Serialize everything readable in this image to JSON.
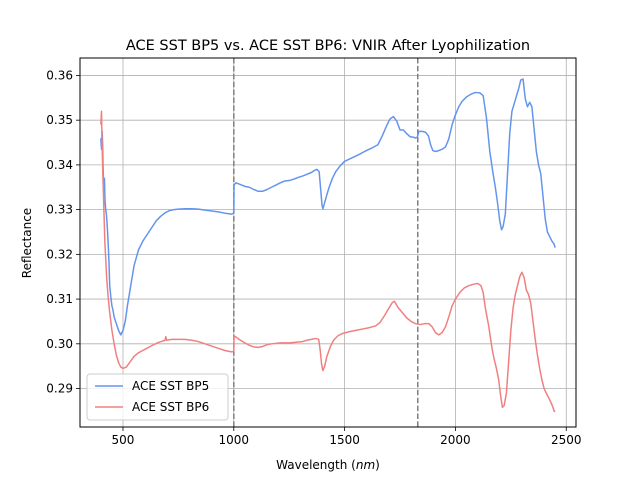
{
  "chart_data": {
    "type": "line",
    "title": "ACE SST BP5 vs. ACE SST BP6: VNIR After Lyophilization",
    "xlabel_prefix": "Wavelength (",
    "xlabel_unit": "nm",
    "xlabel_suffix": ")",
    "ylabel": "Reflectance",
    "xlim": [
      306,
      2544
    ],
    "ylim": [
      0.2814,
      0.3639
    ],
    "xticks": [
      500,
      1000,
      1500,
      2000,
      2500
    ],
    "xtick_labels": [
      "500",
      "1000",
      "1500",
      "2000",
      "2500"
    ],
    "yticks": [
      0.29,
      0.3,
      0.31,
      0.32,
      0.33,
      0.34,
      0.35,
      0.36
    ],
    "ytick_labels": [
      "0.29",
      "0.30",
      "0.31",
      "0.32",
      "0.33",
      "0.34",
      "0.35",
      "0.36"
    ],
    "grid": true,
    "legend_position": "lower-left",
    "vlines": [
      1000,
      1830
    ],
    "series": [
      {
        "name": "ACE SST BP5",
        "color": "#6495ed",
        "points": [
          [
            400,
            0.346
          ],
          [
            403,
            0.3435
          ],
          [
            406,
            0.3475
          ],
          [
            408,
            0.3448
          ],
          [
            410,
            0.3395
          ],
          [
            413,
            0.3355
          ],
          [
            416,
            0.337
          ],
          [
            419,
            0.332
          ],
          [
            422,
            0.33
          ],
          [
            425,
            0.329
          ],
          [
            428,
            0.327
          ],
          [
            431,
            0.3245
          ],
          [
            434,
            0.3215
          ],
          [
            437,
            0.318
          ],
          [
            440,
            0.313
          ],
          [
            445,
            0.3105
          ],
          [
            450,
            0.3085
          ],
          [
            455,
            0.3075
          ],
          [
            460,
            0.306
          ],
          [
            470,
            0.3045
          ],
          [
            480,
            0.303
          ],
          [
            490,
            0.302
          ],
          [
            500,
            0.303
          ],
          [
            510,
            0.305
          ],
          [
            520,
            0.3085
          ],
          [
            535,
            0.313
          ],
          [
            550,
            0.3175
          ],
          [
            570,
            0.321
          ],
          [
            590,
            0.323
          ],
          [
            610,
            0.3245
          ],
          [
            630,
            0.326
          ],
          [
            650,
            0.3275
          ],
          [
            670,
            0.3285
          ],
          [
            690,
            0.3293
          ],
          [
            710,
            0.3298
          ],
          [
            730,
            0.33
          ],
          [
            750,
            0.3301
          ],
          [
            780,
            0.3302
          ],
          [
            810,
            0.3302
          ],
          [
            840,
            0.3301
          ],
          [
            870,
            0.3299
          ],
          [
            900,
            0.3297
          ],
          [
            930,
            0.3295
          ],
          [
            960,
            0.3292
          ],
          [
            990,
            0.329
          ],
          [
            1000,
            0.3292
          ],
          [
            1001,
            0.3355
          ],
          [
            1010,
            0.336
          ],
          [
            1030,
            0.3356
          ],
          [
            1050,
            0.3352
          ],
          [
            1070,
            0.335
          ],
          [
            1090,
            0.3345
          ],
          [
            1110,
            0.3341
          ],
          [
            1130,
            0.3341
          ],
          [
            1150,
            0.3345
          ],
          [
            1170,
            0.335
          ],
          [
            1190,
            0.3355
          ],
          [
            1210,
            0.336
          ],
          [
            1230,
            0.3364
          ],
          [
            1250,
            0.3365
          ],
          [
            1270,
            0.3368
          ],
          [
            1290,
            0.3372
          ],
          [
            1310,
            0.3375
          ],
          [
            1330,
            0.3379
          ],
          [
            1350,
            0.3383
          ],
          [
            1365,
            0.3388
          ],
          [
            1375,
            0.339
          ],
          [
            1385,
            0.3385
          ],
          [
            1392,
            0.3345
          ],
          [
            1398,
            0.331
          ],
          [
            1402,
            0.3302
          ],
          [
            1408,
            0.3312
          ],
          [
            1418,
            0.333
          ],
          [
            1430,
            0.335
          ],
          [
            1445,
            0.337
          ],
          [
            1460,
            0.3385
          ],
          [
            1480,
            0.3398
          ],
          [
            1500,
            0.3408
          ],
          [
            1530,
            0.3415
          ],
          [
            1560,
            0.3422
          ],
          [
            1590,
            0.343
          ],
          [
            1620,
            0.3437
          ],
          [
            1650,
            0.3445
          ],
          [
            1670,
            0.3465
          ],
          [
            1690,
            0.3488
          ],
          [
            1705,
            0.3503
          ],
          [
            1720,
            0.3508
          ],
          [
            1735,
            0.3498
          ],
          [
            1750,
            0.3478
          ],
          [
            1765,
            0.3478
          ],
          [
            1780,
            0.347
          ],
          [
            1795,
            0.3463
          ],
          [
            1810,
            0.3462
          ],
          [
            1820,
            0.346
          ],
          [
            1828,
            0.3462
          ],
          [
            1835,
            0.3475
          ],
          [
            1850,
            0.3475
          ],
          [
            1865,
            0.3473
          ],
          [
            1878,
            0.3465
          ],
          [
            1888,
            0.3445
          ],
          [
            1898,
            0.3432
          ],
          [
            1910,
            0.343
          ],
          [
            1925,
            0.3432
          ],
          [
            1940,
            0.3435
          ],
          [
            1955,
            0.344
          ],
          [
            1970,
            0.3458
          ],
          [
            1985,
            0.349
          ],
          [
            2000,
            0.3512
          ],
          [
            2015,
            0.353
          ],
          [
            2030,
            0.3542
          ],
          [
            2050,
            0.3552
          ],
          [
            2070,
            0.3558
          ],
          [
            2090,
            0.3562
          ],
          [
            2110,
            0.3561
          ],
          [
            2125,
            0.3555
          ],
          [
            2140,
            0.3505
          ],
          [
            2155,
            0.343
          ],
          [
            2170,
            0.338
          ],
          [
            2180,
            0.335
          ],
          [
            2190,
            0.3315
          ],
          [
            2200,
            0.3275
          ],
          [
            2208,
            0.3255
          ],
          [
            2215,
            0.3262
          ],
          [
            2225,
            0.329
          ],
          [
            2235,
            0.338
          ],
          [
            2245,
            0.347
          ],
          [
            2255,
            0.352
          ],
          [
            2270,
            0.3545
          ],
          [
            2285,
            0.357
          ],
          [
            2295,
            0.359
          ],
          [
            2305,
            0.3592
          ],
          [
            2315,
            0.3548
          ],
          [
            2325,
            0.353
          ],
          [
            2335,
            0.354
          ],
          [
            2345,
            0.353
          ],
          [
            2355,
            0.348
          ],
          [
            2365,
            0.343
          ],
          [
            2375,
            0.34
          ],
          [
            2385,
            0.338
          ],
          [
            2395,
            0.333
          ],
          [
            2405,
            0.328
          ],
          [
            2415,
            0.325
          ],
          [
            2425,
            0.324
          ],
          [
            2435,
            0.323
          ],
          [
            2445,
            0.3223
          ],
          [
            2450,
            0.3215
          ]
        ]
      },
      {
        "name": "ACE SST BP6",
        "color": "#f08080",
        "points": [
          [
            400,
            0.349
          ],
          [
            403,
            0.352
          ],
          [
            406,
            0.344
          ],
          [
            409,
            0.338
          ],
          [
            412,
            0.333
          ],
          [
            415,
            0.328
          ],
          [
            418,
            0.323
          ],
          [
            422,
            0.319
          ],
          [
            426,
            0.315
          ],
          [
            432,
            0.311
          ],
          [
            440,
            0.307
          ],
          [
            450,
            0.303
          ],
          [
            460,
            0.3
          ],
          [
            470,
            0.2975
          ],
          [
            480,
            0.2958
          ],
          [
            490,
            0.2948
          ],
          [
            500,
            0.2945
          ],
          [
            515,
            0.2948
          ],
          [
            530,
            0.2958
          ],
          [
            550,
            0.2972
          ],
          [
            570,
            0.298
          ],
          [
            600,
            0.2988
          ],
          [
            630,
            0.2996
          ],
          [
            660,
            0.3003
          ],
          [
            690,
            0.3008
          ],
          [
            693,
            0.3016
          ],
          [
            697,
            0.3008
          ],
          [
            720,
            0.301
          ],
          [
            750,
            0.301
          ],
          [
            780,
            0.301
          ],
          [
            810,
            0.3008
          ],
          [
            840,
            0.3005
          ],
          [
            870,
            0.3
          ],
          [
            900,
            0.2995
          ],
          [
            930,
            0.299
          ],
          [
            960,
            0.2985
          ],
          [
            990,
            0.2982
          ],
          [
            1000,
            0.2983
          ],
          [
            1001,
            0.3018
          ],
          [
            1010,
            0.3015
          ],
          [
            1030,
            0.3008
          ],
          [
            1050,
            0.3002
          ],
          [
            1070,
            0.2997
          ],
          [
            1090,
            0.2993
          ],
          [
            1110,
            0.2992
          ],
          [
            1130,
            0.2994
          ],
          [
            1150,
            0.2998
          ],
          [
            1170,
            0.3
          ],
          [
            1190,
            0.3001
          ],
          [
            1210,
            0.3002
          ],
          [
            1230,
            0.3002
          ],
          [
            1250,
            0.3002
          ],
          [
            1270,
            0.3003
          ],
          [
            1290,
            0.3004
          ],
          [
            1310,
            0.3005
          ],
          [
            1330,
            0.3008
          ],
          [
            1350,
            0.301
          ],
          [
            1370,
            0.3012
          ],
          [
            1383,
            0.301
          ],
          [
            1390,
            0.2985
          ],
          [
            1396,
            0.2955
          ],
          [
            1402,
            0.294
          ],
          [
            1410,
            0.295
          ],
          [
            1420,
            0.2972
          ],
          [
            1435,
            0.2993
          ],
          [
            1450,
            0.3008
          ],
          [
            1470,
            0.3018
          ],
          [
            1490,
            0.3023
          ],
          [
            1520,
            0.3027
          ],
          [
            1550,
            0.303
          ],
          [
            1580,
            0.3033
          ],
          [
            1610,
            0.3036
          ],
          [
            1640,
            0.304
          ],
          [
            1660,
            0.3048
          ],
          [
            1680,
            0.3063
          ],
          [
            1700,
            0.308
          ],
          [
            1715,
            0.3092
          ],
          [
            1725,
            0.3095
          ],
          [
            1740,
            0.3082
          ],
          [
            1760,
            0.307
          ],
          [
            1780,
            0.3058
          ],
          [
            1800,
            0.305
          ],
          [
            1820,
            0.3045
          ],
          [
            1840,
            0.3043
          ],
          [
            1860,
            0.3045
          ],
          [
            1880,
            0.3045
          ],
          [
            1895,
            0.3038
          ],
          [
            1910,
            0.3025
          ],
          [
            1925,
            0.302
          ],
          [
            1940,
            0.3025
          ],
          [
            1955,
            0.3038
          ],
          [
            1970,
            0.306
          ],
          [
            1985,
            0.3085
          ],
          [
            2000,
            0.31
          ],
          [
            2020,
            0.3115
          ],
          [
            2040,
            0.3125
          ],
          [
            2060,
            0.313
          ],
          [
            2080,
            0.3133
          ],
          [
            2100,
            0.3135
          ],
          [
            2115,
            0.313
          ],
          [
            2125,
            0.3115
          ],
          [
            2135,
            0.308
          ],
          [
            2150,
            0.304
          ],
          [
            2165,
            0.299
          ],
          [
            2175,
            0.2965
          ],
          [
            2185,
            0.2945
          ],
          [
            2195,
            0.292
          ],
          [
            2205,
            0.288
          ],
          [
            2212,
            0.2858
          ],
          [
            2220,
            0.2862
          ],
          [
            2230,
            0.289
          ],
          [
            2240,
            0.296
          ],
          [
            2250,
            0.303
          ],
          [
            2260,
            0.308
          ],
          [
            2270,
            0.311
          ],
          [
            2280,
            0.313
          ],
          [
            2290,
            0.315
          ],
          [
            2300,
            0.316
          ],
          [
            2310,
            0.3148
          ],
          [
            2320,
            0.312
          ],
          [
            2330,
            0.311
          ],
          [
            2340,
            0.309
          ],
          [
            2350,
            0.305
          ],
          [
            2360,
            0.301
          ],
          [
            2370,
            0.2975
          ],
          [
            2380,
            0.2945
          ],
          [
            2390,
            0.292
          ],
          [
            2400,
            0.29
          ],
          [
            2410,
            0.289
          ],
          [
            2420,
            0.288
          ],
          [
            2430,
            0.287
          ],
          [
            2440,
            0.2858
          ],
          [
            2445,
            0.285
          ],
          [
            2450,
            0.2848
          ]
        ]
      }
    ]
  }
}
